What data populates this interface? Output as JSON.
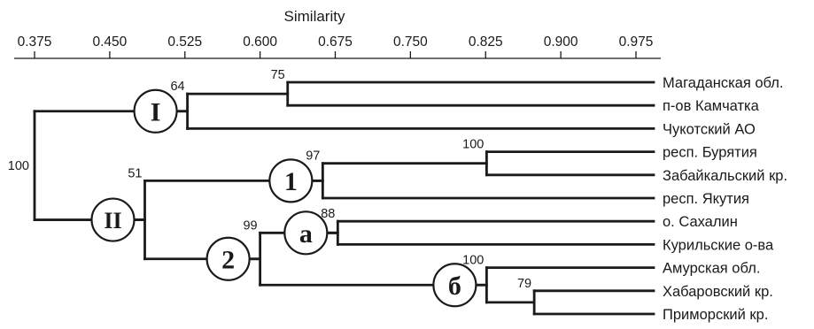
{
  "axis": {
    "title": "Similarity",
    "ticks": [
      {
        "value": 0.375,
        "label": "0.375"
      },
      {
        "value": 0.45,
        "label": "0.450"
      },
      {
        "value": 0.525,
        "label": "0.525"
      },
      {
        "value": 0.6,
        "label": "0.600"
      },
      {
        "value": 0.675,
        "label": "0.675"
      },
      {
        "value": 0.75,
        "label": "0.750"
      },
      {
        "value": 0.825,
        "label": "0.825"
      },
      {
        "value": 0.9,
        "label": "0.900"
      },
      {
        "value": 0.975,
        "label": "0.975"
      }
    ]
  },
  "leaves": [
    "Магаданская обл.",
    "п-ов Камчатка",
    "Чукотский АО",
    "респ. Бурятия",
    "Забайкальский кр.",
    "респ. Якутия",
    "о. Сахалин",
    "Курильские о-ва",
    "Амурская обл.",
    "Хабаровский кр.",
    "Приморский кр."
  ],
  "clusters": [
    {
      "id": "c75",
      "children": [
        "L0",
        "L1"
      ],
      "similarity": 0.6275,
      "support": "75"
    },
    {
      "id": "cI",
      "children": [
        "c75",
        "L2"
      ],
      "similarity": 0.5275,
      "support": "64"
    },
    {
      "id": "c100a",
      "children": [
        "L3",
        "L4"
      ],
      "similarity": 0.826,
      "support": "100"
    },
    {
      "id": "c1",
      "children": [
        "c100a",
        "L5"
      ],
      "similarity": 0.6625,
      "support": "97"
    },
    {
      "id": "ca",
      "children": [
        "L6",
        "L7"
      ],
      "similarity": 0.6775,
      "support": "88"
    },
    {
      "id": "c79",
      "children": [
        "L9",
        "L10"
      ],
      "similarity": 0.8735,
      "support": "79"
    },
    {
      "id": "cb",
      "children": [
        "L8",
        "c79"
      ],
      "similarity": 0.826,
      "support": "100"
    },
    {
      "id": "c2",
      "children": [
        "ca",
        "cb"
      ],
      "similarity": 0.6,
      "support": "99"
    },
    {
      "id": "cII",
      "children": [
        "c1",
        "c2"
      ],
      "similarity": 0.485,
      "support": "51"
    },
    {
      "id": "root",
      "children": [
        "cI",
        "cII"
      ],
      "similarity": 0.375,
      "support": "100"
    }
  ],
  "group_markers": [
    {
      "label": "I",
      "cluster": "cI"
    },
    {
      "label": "II",
      "cluster": "cII"
    },
    {
      "label": "1",
      "cluster": "c1"
    },
    {
      "label": "2",
      "cluster": "c2"
    },
    {
      "label": "а",
      "cluster": "ca"
    },
    {
      "label": "б",
      "cluster": "cb"
    }
  ]
}
